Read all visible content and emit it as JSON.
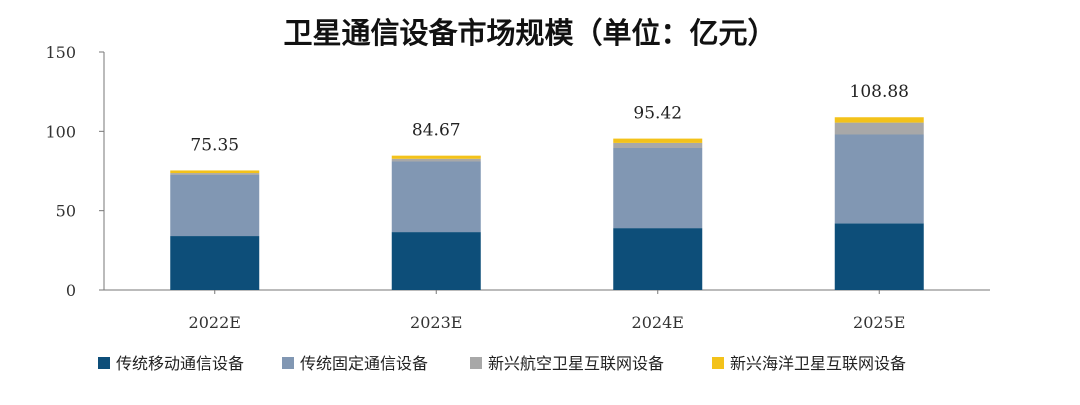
{
  "chart_data": {
    "type": "bar",
    "stacked": true,
    "title": "卫星通信设备市场规模（单位：亿元）",
    "categories": [
      "2022E",
      "2023E",
      "2024E",
      "2025E"
    ],
    "ylim": [
      0,
      150
    ],
    "yticks": [
      "0",
      "50",
      "100",
      "150"
    ],
    "grid": false,
    "legend_position": "bottom",
    "series": [
      {
        "name": "传统移动通信设备",
        "color": "#0d4e79",
        "values": [
          34,
          36.5,
          39,
          42
        ]
      },
      {
        "name": "传统固定通信设备",
        "color": "#8197b3",
        "values": [
          38.5,
          44.5,
          50.5,
          56
        ]
      },
      {
        "name": "新兴航空卫星互联网设备",
        "color": "#a8a8a8",
        "values": [
          1.2,
          1.7,
          3.2,
          7.5
        ]
      },
      {
        "name": "新兴海洋卫星互联网设备",
        "color": "#f3c21a",
        "values": [
          1.65,
          1.97,
          2.72,
          3.38
        ]
      }
    ],
    "totals": [
      "75.35",
      "84.67",
      "95.42",
      "108.88"
    ]
  }
}
